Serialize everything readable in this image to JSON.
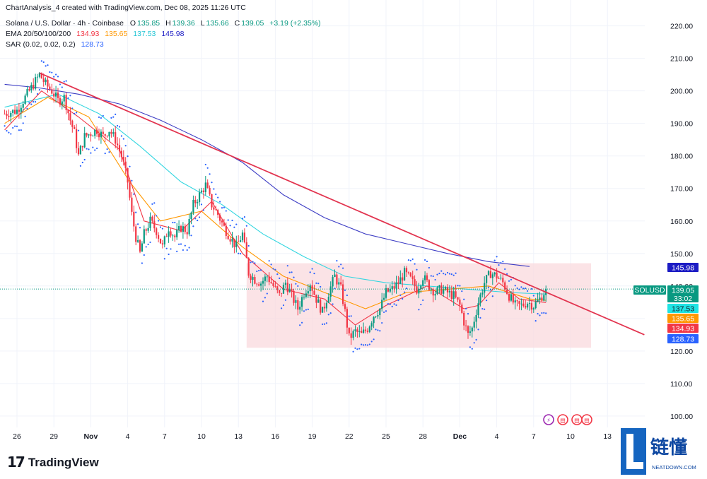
{
  "header": {
    "creator": "ChartAnalysis_4 created with TradingView.com, Dec 08, 2025 11:26 UTC",
    "symbol": "Solana / U.S. Dollar · 4h · Coinbase",
    "ohlc": {
      "o_label": "O",
      "o": "135.85",
      "h_label": "H",
      "h": "139.36",
      "l_label": "L",
      "l": "135.66",
      "c_label": "C",
      "c": "139.05",
      "change": "+3.19 (+2.35%)"
    },
    "ema": {
      "label": "EMA 20/50/100/200",
      "v20": "134.93",
      "v50": "135.65",
      "v100": "137.53",
      "v200": "145.98"
    },
    "sar": {
      "label": "SAR (0.02, 0.02, 0.2)",
      "value": "128.73"
    }
  },
  "price_badges": [
    {
      "text": "145.98",
      "value": 145.98,
      "color": "#1c1cc4"
    },
    {
      "text": "SOLUSD",
      "value": 139.05,
      "color": "#089981",
      "left": true
    },
    {
      "text": "139.05",
      "value": 139.05,
      "color": "#089981",
      "sub": "33:02"
    },
    {
      "text": "137.53",
      "value": 137.53,
      "color": "#20e4e4"
    },
    {
      "text": "135.65",
      "value": 135.65,
      "color": "#ff9800"
    },
    {
      "text": "134.93",
      "value": 134.93,
      "color": "#f23645"
    },
    {
      "text": "128.73",
      "value": 128.73,
      "color": "#2962ff"
    }
  ],
  "branding": {
    "tradingview": "TradingView",
    "watermark_cn": "链懂",
    "watermark_en": "NEATDOWN.COM"
  },
  "chart_data": {
    "type": "candlestick",
    "timeframe": "4h",
    "y_ticks": [
      100,
      110,
      120,
      130,
      140,
      150,
      160,
      170,
      180,
      190,
      200,
      210,
      220
    ],
    "ylim": [
      97,
      225
    ],
    "x_ticks": [
      {
        "label": "26",
        "t": 0
      },
      {
        "label": "29",
        "t": 18
      },
      {
        "label": "Nov",
        "t": 36
      },
      {
        "label": "4",
        "t": 54
      },
      {
        "label": "7",
        "t": 72
      },
      {
        "label": "10",
        "t": 90
      },
      {
        "label": "13",
        "t": 108
      },
      {
        "label": "16",
        "t": 126
      },
      {
        "label": "19",
        "t": 144
      },
      {
        "label": "22",
        "t": 162
      },
      {
        "label": "25",
        "t": 180
      },
      {
        "label": "28",
        "t": 198
      },
      {
        "label": "Dec",
        "t": 216
      },
      {
        "label": "4",
        "t": 234
      },
      {
        "label": "7",
        "t": 252
      },
      {
        "label": "10",
        "t": 270
      },
      {
        "label": "13",
        "t": 288
      }
    ],
    "close_path": [
      [
        -6,
        193
      ],
      [
        0,
        194
      ],
      [
        3,
        197
      ],
      [
        6,
        200
      ],
      [
        9,
        203
      ],
      [
        11,
        205
      ],
      [
        14,
        202
      ],
      [
        17,
        200
      ],
      [
        20,
        197
      ],
      [
        23,
        198
      ],
      [
        26,
        191
      ],
      [
        28,
        187
      ],
      [
        30,
        180
      ],
      [
        33,
        186
      ],
      [
        36,
        187
      ],
      [
        39,
        188
      ],
      [
        42,
        186
      ],
      [
        45,
        188
      ],
      [
        48,
        185
      ],
      [
        51,
        180
      ],
      [
        54,
        172
      ],
      [
        56,
        162
      ],
      [
        58,
        155
      ],
      [
        60,
        150
      ],
      [
        62,
        156
      ],
      [
        65,
        160
      ],
      [
        68,
        157
      ],
      [
        71,
        152
      ],
      [
        74,
        158
      ],
      [
        77,
        155
      ],
      [
        80,
        158
      ],
      [
        83,
        157
      ],
      [
        86,
        165
      ],
      [
        89,
        168
      ],
      [
        92,
        171
      ],
      [
        95,
        165
      ],
      [
        98,
        162
      ],
      [
        101,
        158
      ],
      [
        104,
        155
      ],
      [
        107,
        152
      ],
      [
        110,
        156
      ],
      [
        113,
        144
      ],
      [
        116,
        142
      ],
      [
        119,
        141
      ],
      [
        122,
        143
      ],
      [
        125,
        140
      ],
      [
        128,
        137
      ],
      [
        131,
        141
      ],
      [
        134,
        137
      ],
      [
        137,
        133
      ],
      [
        140,
        138
      ],
      [
        143,
        141
      ],
      [
        146,
        136
      ],
      [
        149,
        132
      ],
      [
        152,
        138
      ],
      [
        155,
        143
      ],
      [
        158,
        139
      ],
      [
        160,
        132
      ],
      [
        162,
        124
      ],
      [
        165,
        126
      ],
      [
        168,
        125
      ],
      [
        171,
        127
      ],
      [
        174,
        131
      ],
      [
        177,
        133
      ],
      [
        180,
        138
      ],
      [
        183,
        139
      ],
      [
        186,
        141
      ],
      [
        189,
        144
      ],
      [
        192,
        142
      ],
      [
        195,
        139
      ],
      [
        198,
        143
      ],
      [
        201,
        140
      ],
      [
        204,
        138
      ],
      [
        207,
        139
      ],
      [
        210,
        138
      ],
      [
        213,
        137
      ],
      [
        216,
        134
      ],
      [
        218,
        129
      ],
      [
        220,
        125
      ],
      [
        222,
        127
      ],
      [
        225,
        135
      ],
      [
        228,
        141
      ],
      [
        231,
        144
      ],
      [
        234,
        143
      ],
      [
        237,
        141
      ],
      [
        240,
        137
      ],
      [
        243,
        134
      ],
      [
        246,
        134
      ],
      [
        249,
        135
      ],
      [
        252,
        134
      ],
      [
        255,
        136
      ],
      [
        258,
        139
      ]
    ],
    "ema_series": [
      {
        "name": "EMA 200",
        "color": "#3d3dc4",
        "points": [
          [
            -6,
            202
          ],
          [
            10,
            201
          ],
          [
            30,
            199
          ],
          [
            50,
            196
          ],
          [
            70,
            191
          ],
          [
            90,
            185
          ],
          [
            110,
            178
          ],
          [
            130,
            168
          ],
          [
            150,
            161
          ],
          [
            170,
            156
          ],
          [
            190,
            153
          ],
          [
            210,
            150
          ],
          [
            230,
            147.5
          ],
          [
            250,
            146
          ]
        ]
      },
      {
        "name": "EMA 100",
        "color": "#33d6e0",
        "points": [
          [
            -6,
            195
          ],
          [
            20,
            199
          ],
          [
            40,
            193
          ],
          [
            60,
            183
          ],
          [
            80,
            172
          ],
          [
            100,
            165
          ],
          [
            120,
            156
          ],
          [
            140,
            149
          ],
          [
            160,
            143
          ],
          [
            180,
            141
          ],
          [
            200,
            140
          ],
          [
            220,
            139
          ],
          [
            240,
            138
          ],
          [
            258,
            137.5
          ]
        ]
      },
      {
        "name": "EMA 50",
        "color": "#ff9800",
        "points": [
          [
            -6,
            190
          ],
          [
            15,
            198
          ],
          [
            35,
            192
          ],
          [
            55,
            172
          ],
          [
            70,
            160
          ],
          [
            90,
            163
          ],
          [
            110,
            152
          ],
          [
            130,
            143
          ],
          [
            150,
            138
          ],
          [
            170,
            133
          ],
          [
            190,
            138
          ],
          [
            210,
            139
          ],
          [
            230,
            140
          ],
          [
            250,
            136
          ],
          [
            258,
            135.6
          ]
        ]
      },
      {
        "name": "EMA 20",
        "color": "#f23645",
        "points": [
          [
            -6,
            188
          ],
          [
            12,
            200
          ],
          [
            30,
            192
          ],
          [
            50,
            182
          ],
          [
            62,
            160
          ],
          [
            80,
            157
          ],
          [
            95,
            166
          ],
          [
            110,
            150
          ],
          [
            130,
            139
          ],
          [
            150,
            136
          ],
          [
            165,
            128
          ],
          [
            180,
            134
          ],
          [
            200,
            140
          ],
          [
            218,
            133
          ],
          [
            225,
            134
          ],
          [
            235,
            141
          ],
          [
            245,
            136
          ],
          [
            258,
            134.9
          ]
        ]
      }
    ],
    "sar_value": 128.73,
    "trendline": {
      "color": "#e2344f",
      "from": [
        11,
        205.5
      ],
      "to": [
        306,
        125
      ]
    },
    "range_box": {
      "t0": 112,
      "t1": 280,
      "y0": 121,
      "y1": 147,
      "color": "#f9d9de"
    },
    "last_price": 139.05
  }
}
